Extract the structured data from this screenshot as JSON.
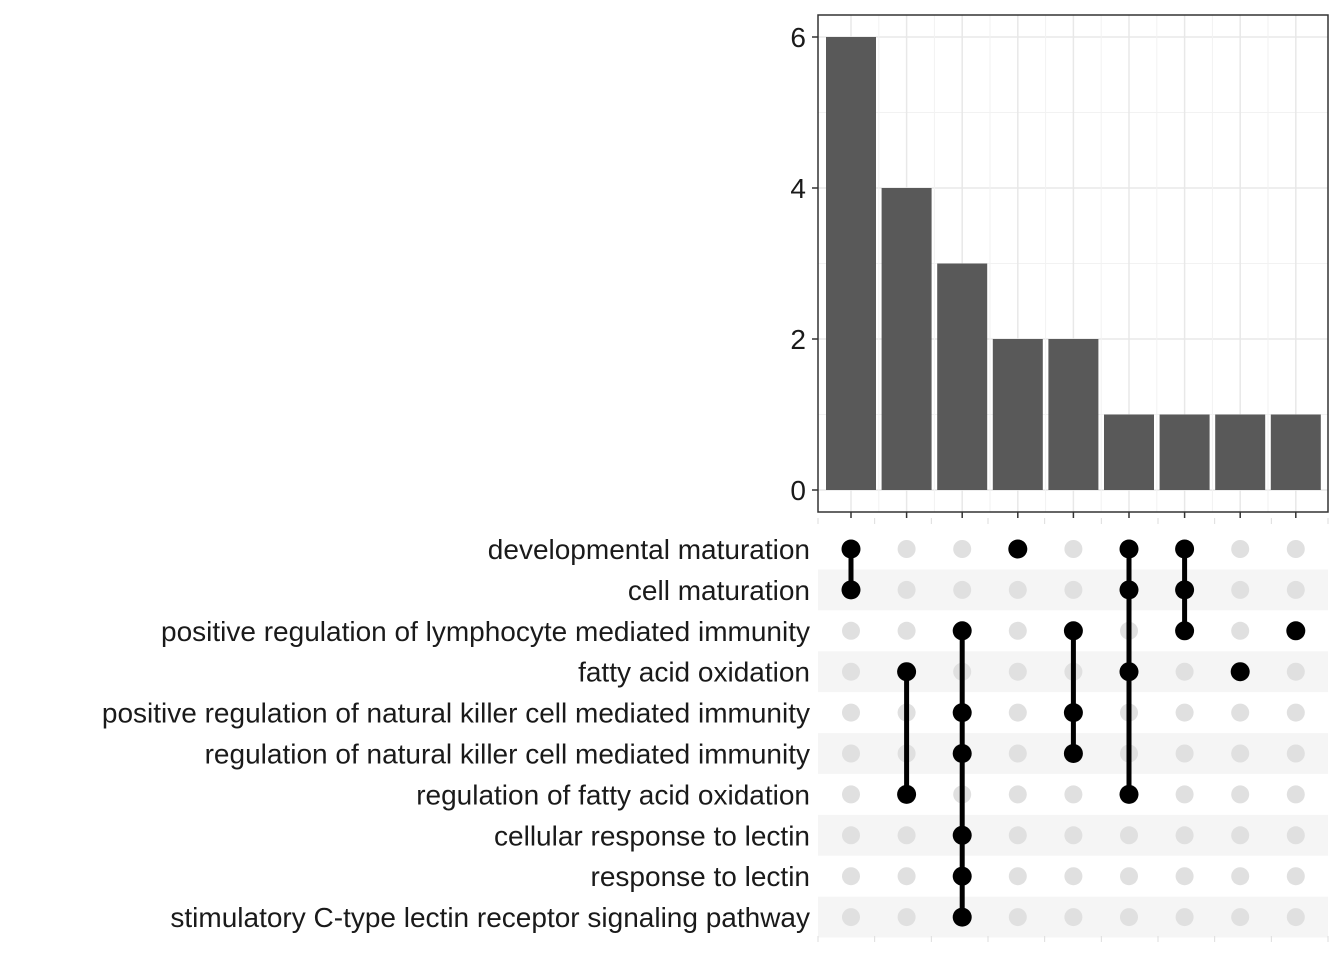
{
  "chart_data": {
    "type": "bar",
    "subtype": "upset",
    "title": "",
    "xlabel": "",
    "ylabel": "",
    "ylim": [
      0,
      6.3
    ],
    "y_ticks": [
      "0",
      "2",
      "4",
      "6"
    ],
    "grid": true,
    "bar_color": "#595959",
    "dot_active_color": "#000000",
    "dot_inactive_color": "#e0e0e0",
    "stripe_color": "#f5f5f5",
    "sets": [
      "developmental maturation",
      "cell maturation",
      "positive regulation of lymphocyte mediated immunity",
      "fatty acid oxidation",
      "positive regulation of natural killer cell mediated immunity",
      "regulation of natural killer cell mediated immunity",
      "regulation of fatty acid oxidation",
      "cellular response to lectin",
      "response to lectin",
      "stimulatory C-type lectin receptor signaling pathway"
    ],
    "intersections": [
      {
        "value": 6,
        "members": [
          0,
          1
        ]
      },
      {
        "value": 4,
        "members": [
          3,
          6
        ]
      },
      {
        "value": 3,
        "members": [
          2,
          4,
          5,
          7,
          8,
          9
        ]
      },
      {
        "value": 2,
        "members": [
          0
        ]
      },
      {
        "value": 2,
        "members": [
          2,
          4,
          5
        ]
      },
      {
        "value": 1,
        "members": [
          0,
          1,
          3,
          6
        ]
      },
      {
        "value": 1,
        "members": [
          0,
          1,
          2
        ]
      },
      {
        "value": 1,
        "members": [
          3
        ]
      },
      {
        "value": 1,
        "members": [
          2
        ]
      }
    ]
  }
}
